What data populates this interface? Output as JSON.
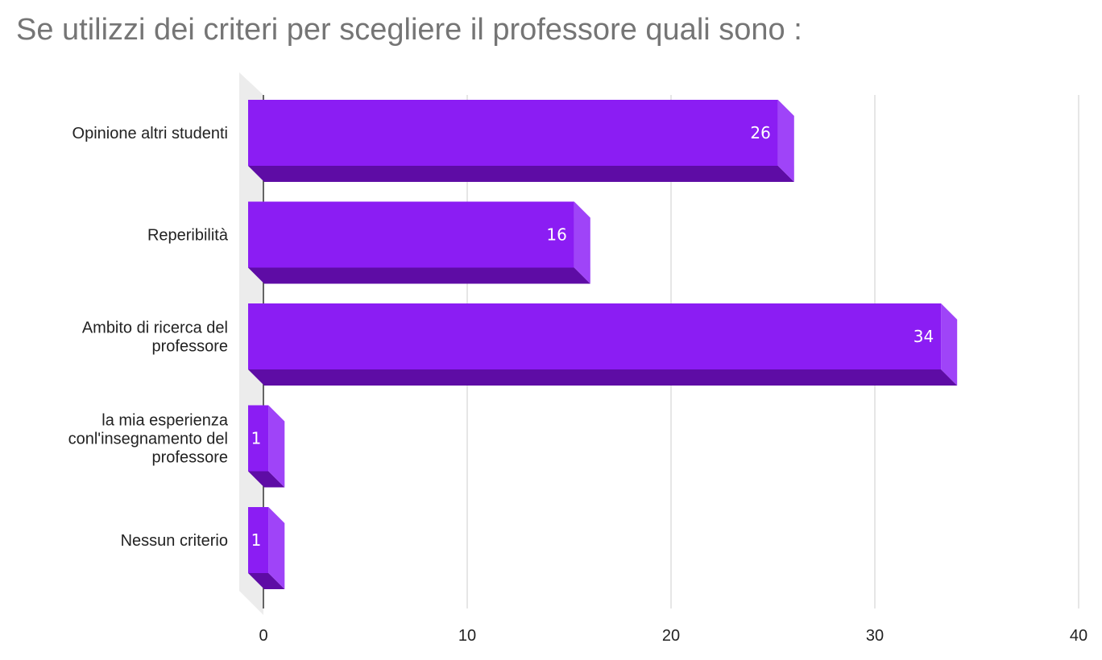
{
  "chart_data": {
    "type": "bar",
    "orientation": "horizontal",
    "title": "Se utilizzi dei criteri per scegliere il professore quali sono :",
    "categories": [
      "Opinione altri studenti",
      "Reperibilità",
      "Ambito di ricerca del professore",
      "la mia esperienza conl'insegnamento del professore",
      "Nessun criterio"
    ],
    "category_lines": [
      [
        "Opinione altri studenti"
      ],
      [
        "Reperibilità"
      ],
      [
        "Ambito di ricerca del",
        "professore"
      ],
      [
        "la mia esperienza",
        "conl'insegnamento del",
        "professore"
      ],
      [
        "Nessun criterio"
      ]
    ],
    "values": [
      26,
      16,
      34,
      1,
      1
    ],
    "xlim": [
      0,
      40
    ],
    "xticks": [
      0,
      10,
      20,
      30,
      40
    ],
    "xlabel": "",
    "ylabel": "",
    "grid": true,
    "legend": "none",
    "style": "3d",
    "colors": {
      "bar_front": "#8b1df3",
      "bar_side": "#9f44f8",
      "bar_bottom": "#5e0ca5",
      "back_wall": "#ececec",
      "grid": "#cccccc",
      "axis": "#333333",
      "title": "#757575"
    }
  }
}
